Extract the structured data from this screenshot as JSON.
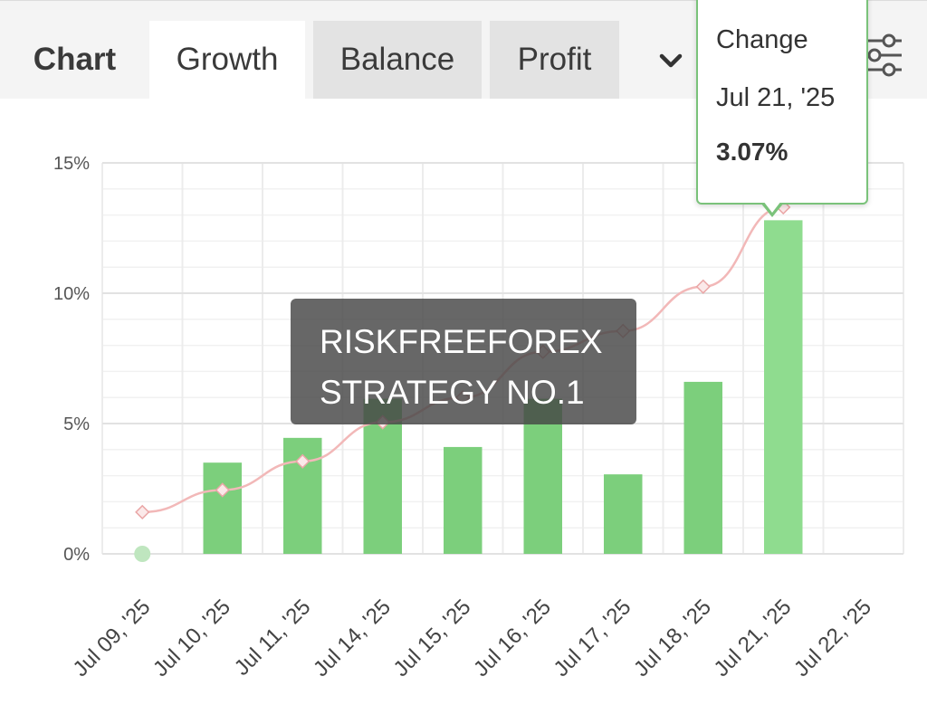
{
  "tabs": {
    "chart_label": "Chart",
    "growth": "Growth",
    "balance": "Balance",
    "profit": "Profit"
  },
  "icons": {
    "dropdown": "chevron-down-icon",
    "filter": "sliders-icon"
  },
  "colors": {
    "bar": "#7ccf7c",
    "bar_highlight": "#8fdc8f",
    "line": "#f2b8b8",
    "tooltip_border": "#7ac27a"
  },
  "tooltip": {
    "label": "Change",
    "date": "Jul 21, '25",
    "value": "3.07%"
  },
  "watermark": {
    "line1": "RISKFREEFOREX",
    "line2": "STRATEGY NO.1"
  },
  "chart_data": {
    "type": "bar",
    "categories": [
      "Jul 09, '25",
      "Jul 10, '25",
      "Jul 11, '25",
      "Jul 14, '25",
      "Jul 15, '25",
      "Jul 16, '25",
      "Jul 17, '25",
      "Jul 18, '25",
      "Jul 21, '25",
      "Jul 22, '25"
    ],
    "y_ticks": [
      "0%",
      "5%",
      "10%",
      "15%"
    ],
    "ylim": [
      0,
      15
    ],
    "series": [
      {
        "type": "bar",
        "values": [
          0,
          3.5,
          4.45,
          5.95,
          4.1,
          5.95,
          3.05,
          6.6,
          12.8,
          null
        ]
      },
      {
        "type": "line",
        "values": [
          1.6,
          2.45,
          3.55,
          5.05,
          6.0,
          7.75,
          8.55,
          10.25,
          13.3,
          null
        ]
      }
    ],
    "highlight_index": 8,
    "grid": true,
    "legend": "none"
  }
}
